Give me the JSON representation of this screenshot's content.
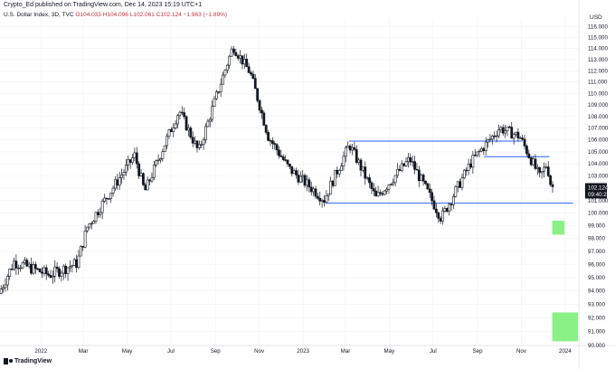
{
  "header": {
    "publisher_line": "Crypto_Ed published on TradingView.com, Dec 14, 2023 15:19 UTC+1",
    "symbol_line": "U.S. Dollar Index, 3D, TVC",
    "ohlc": "O104.033 H104.096 L102.061 C102.124 −1.963 (−1.89%)"
  },
  "currency": "USD",
  "footer": {
    "brand": "TradingView"
  },
  "price_label": {
    "price": "102.124",
    "countdown": "09:40:27"
  },
  "colors": {
    "line": "#2962ff",
    "zone": "#7df07a",
    "candle": "#131722",
    "grid": "#eef0f4"
  },
  "chart_data": {
    "type": "candlestick",
    "x_range": [
      "2021-11-05",
      "2024-01-20"
    ],
    "y_range": [
      90,
      116.8
    ],
    "y_scale": "log",
    "x_ticks": [
      "2022",
      "Mar",
      "May",
      "Jul",
      "Sep",
      "Nov",
      "2023",
      "Mar",
      "May",
      "Jul",
      "Sep",
      "Nov",
      "2024"
    ],
    "y_ticks": [
      "116.000",
      "115.000",
      "114.000",
      "113.000",
      "112.000",
      "111.000",
      "110.000",
      "109.000",
      "108.000",
      "107.000",
      "106.000",
      "105.000",
      "104.000",
      "103.000",
      "102.000",
      "101.000",
      "100.000",
      "99.000",
      "98.000",
      "97.000",
      "96.000",
      "95.000",
      "94.000",
      "93.000",
      "92.000",
      "91.000",
      "90.000"
    ],
    "anchors": [
      {
        "date": "2021-11-05",
        "price": 93.8
      },
      {
        "date": "2021-11-26",
        "price": 96.2
      },
      {
        "date": "2022-01-14",
        "price": 95.2
      },
      {
        "date": "2022-02-22",
        "price": 96.1
      },
      {
        "date": "2022-03-08",
        "price": 98.9
      },
      {
        "date": "2022-05-13",
        "price": 104.7
      },
      {
        "date": "2022-05-27",
        "price": 101.7
      },
      {
        "date": "2022-07-14",
        "price": 108.5
      },
      {
        "date": "2022-08-10",
        "price": 105.0
      },
      {
        "date": "2022-09-27",
        "price": 114.2
      },
      {
        "date": "2022-10-21",
        "price": 111.8
      },
      {
        "date": "2022-11-15",
        "price": 106.3
      },
      {
        "date": "2022-12-14",
        "price": 103.6
      },
      {
        "date": "2023-02-01",
        "price": 101.1
      },
      {
        "date": "2023-03-08",
        "price": 105.6
      },
      {
        "date": "2023-04-14",
        "price": 101.2
      },
      {
        "date": "2023-05-31",
        "price": 104.4
      },
      {
        "date": "2023-07-14",
        "price": 99.6
      },
      {
        "date": "2023-08-25",
        "price": 104.2
      },
      {
        "date": "2023-10-03",
        "price": 107.0
      },
      {
        "date": "2023-10-31",
        "price": 106.3
      },
      {
        "date": "2023-11-28",
        "price": 102.9
      },
      {
        "date": "2023-12-08",
        "price": 104.0
      },
      {
        "date": "2023-12-14",
        "price": 102.124
      }
    ],
    "horizontal_lines": [
      {
        "price": 105.9,
        "from": "2023-03-06",
        "to": "2023-11-02"
      },
      {
        "price": 100.8,
        "from": "2023-02-01",
        "to": "2024-01-12"
      },
      {
        "price": 104.6,
        "from": "2023-09-10",
        "to": "2023-12-10"
      }
    ],
    "zones": [
      {
        "from": "2023-12-14",
        "to": "2023-12-31",
        "low": 98.3,
        "high": 99.4
      },
      {
        "from": "2023-12-14",
        "to": "2024-01-20",
        "low": 90.3,
        "high": 92.4
      }
    ],
    "last_price": 102.124
  }
}
